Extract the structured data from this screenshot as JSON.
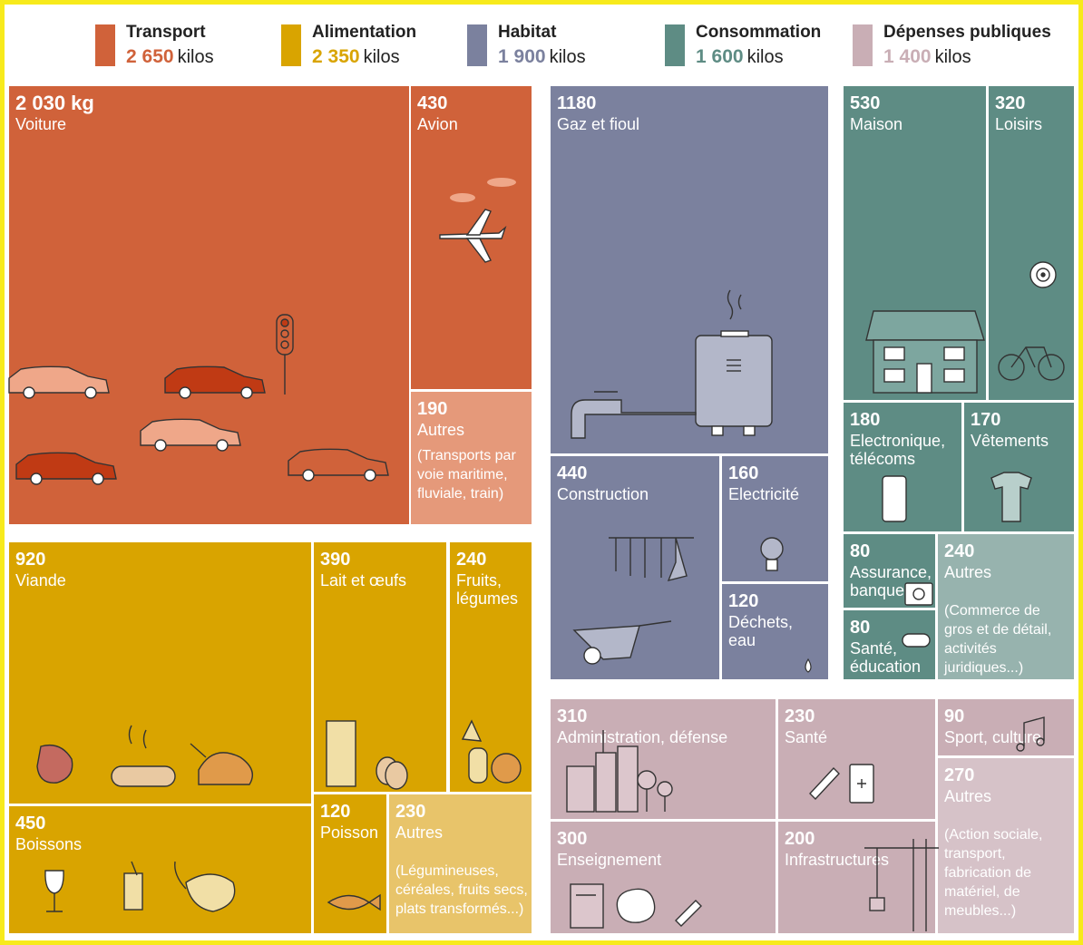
{
  "legend": [
    {
      "name": "Transport",
      "total": "2 650",
      "unit": "kilos",
      "color": "#d0623a"
    },
    {
      "name": "Alimentation",
      "total": "2 350",
      "unit": "kilos",
      "color": "#d9a400"
    },
    {
      "name": "Habitat",
      "total": "1 900",
      "unit": "kilos",
      "color": "#7b819e"
    },
    {
      "name": "Consommation",
      "total": "1 600",
      "unit": "kilos",
      "color": "#5e8c84"
    },
    {
      "name": "Dépenses publiques",
      "total": "1 400",
      "unit": "kilos",
      "color": "#c9aeb5"
    }
  ],
  "chart_data": {
    "type": "treemap",
    "unit": "kg",
    "groups": [
      {
        "name": "Transport",
        "total": 2650,
        "items": [
          {
            "value": 2030,
            "label": "Voiture",
            "display": "2 030 kg"
          },
          {
            "value": 430,
            "label": "Avion",
            "display": "430"
          },
          {
            "value": 190,
            "label": "Autres",
            "display": "190",
            "note": "(Transports par voie maritime, fluviale, train)"
          }
        ]
      },
      {
        "name": "Alimentation",
        "total": 2350,
        "items": [
          {
            "value": 920,
            "label": "Viande",
            "display": "920"
          },
          {
            "value": 390,
            "label": "Lait et œufs",
            "display": "390"
          },
          {
            "value": 240,
            "label": "Fruits, légumes",
            "display": "240"
          },
          {
            "value": 450,
            "label": "Boissons",
            "display": "450"
          },
          {
            "value": 120,
            "label": "Poisson",
            "display": "120"
          },
          {
            "value": 230,
            "label": "Autres",
            "display": "230",
            "note": "(Légumineuses, céréales, fruits secs, plats transformés...)"
          }
        ]
      },
      {
        "name": "Habitat",
        "total": 1900,
        "items": [
          {
            "value": 1180,
            "label": "Gaz et fioul",
            "display": "1180"
          },
          {
            "value": 440,
            "label": "Construction",
            "display": "440"
          },
          {
            "value": 160,
            "label": "Electricité",
            "display": "160"
          },
          {
            "value": 120,
            "label": "Déchets, eau",
            "display": "120"
          }
        ]
      },
      {
        "name": "Consommation",
        "total": 1600,
        "items": [
          {
            "value": 530,
            "label": "Maison",
            "display": "530"
          },
          {
            "value": 320,
            "label": "Loisirs",
            "display": "320"
          },
          {
            "value": 180,
            "label": "Electronique, télécoms",
            "display": "180"
          },
          {
            "value": 170,
            "label": "Vêtements",
            "display": "170"
          },
          {
            "value": 80,
            "label": "Assurance, banque",
            "display": "80"
          },
          {
            "value": 80,
            "label": "Santé, éducation",
            "display": "80"
          },
          {
            "value": 240,
            "label": "Autres",
            "display": "240",
            "note": "(Commerce de gros et de détail, activités juridiques...)"
          }
        ]
      },
      {
        "name": "Dépenses publiques",
        "total": 1400,
        "items": [
          {
            "value": 310,
            "label": "Administration, défense",
            "display": "310"
          },
          {
            "value": 230,
            "label": "Santé",
            "display": "230"
          },
          {
            "value": 90,
            "label": "Sport, culture",
            "display": "90"
          },
          {
            "value": 300,
            "label": "Enseignement",
            "display": "300"
          },
          {
            "value": 200,
            "label": "Infrastructures",
            "display": "200"
          },
          {
            "value": 270,
            "label": "Autres",
            "display": "270",
            "note": "(Action sociale, transport, fabrication de matériel, de meubles...)"
          }
        ]
      }
    ]
  }
}
